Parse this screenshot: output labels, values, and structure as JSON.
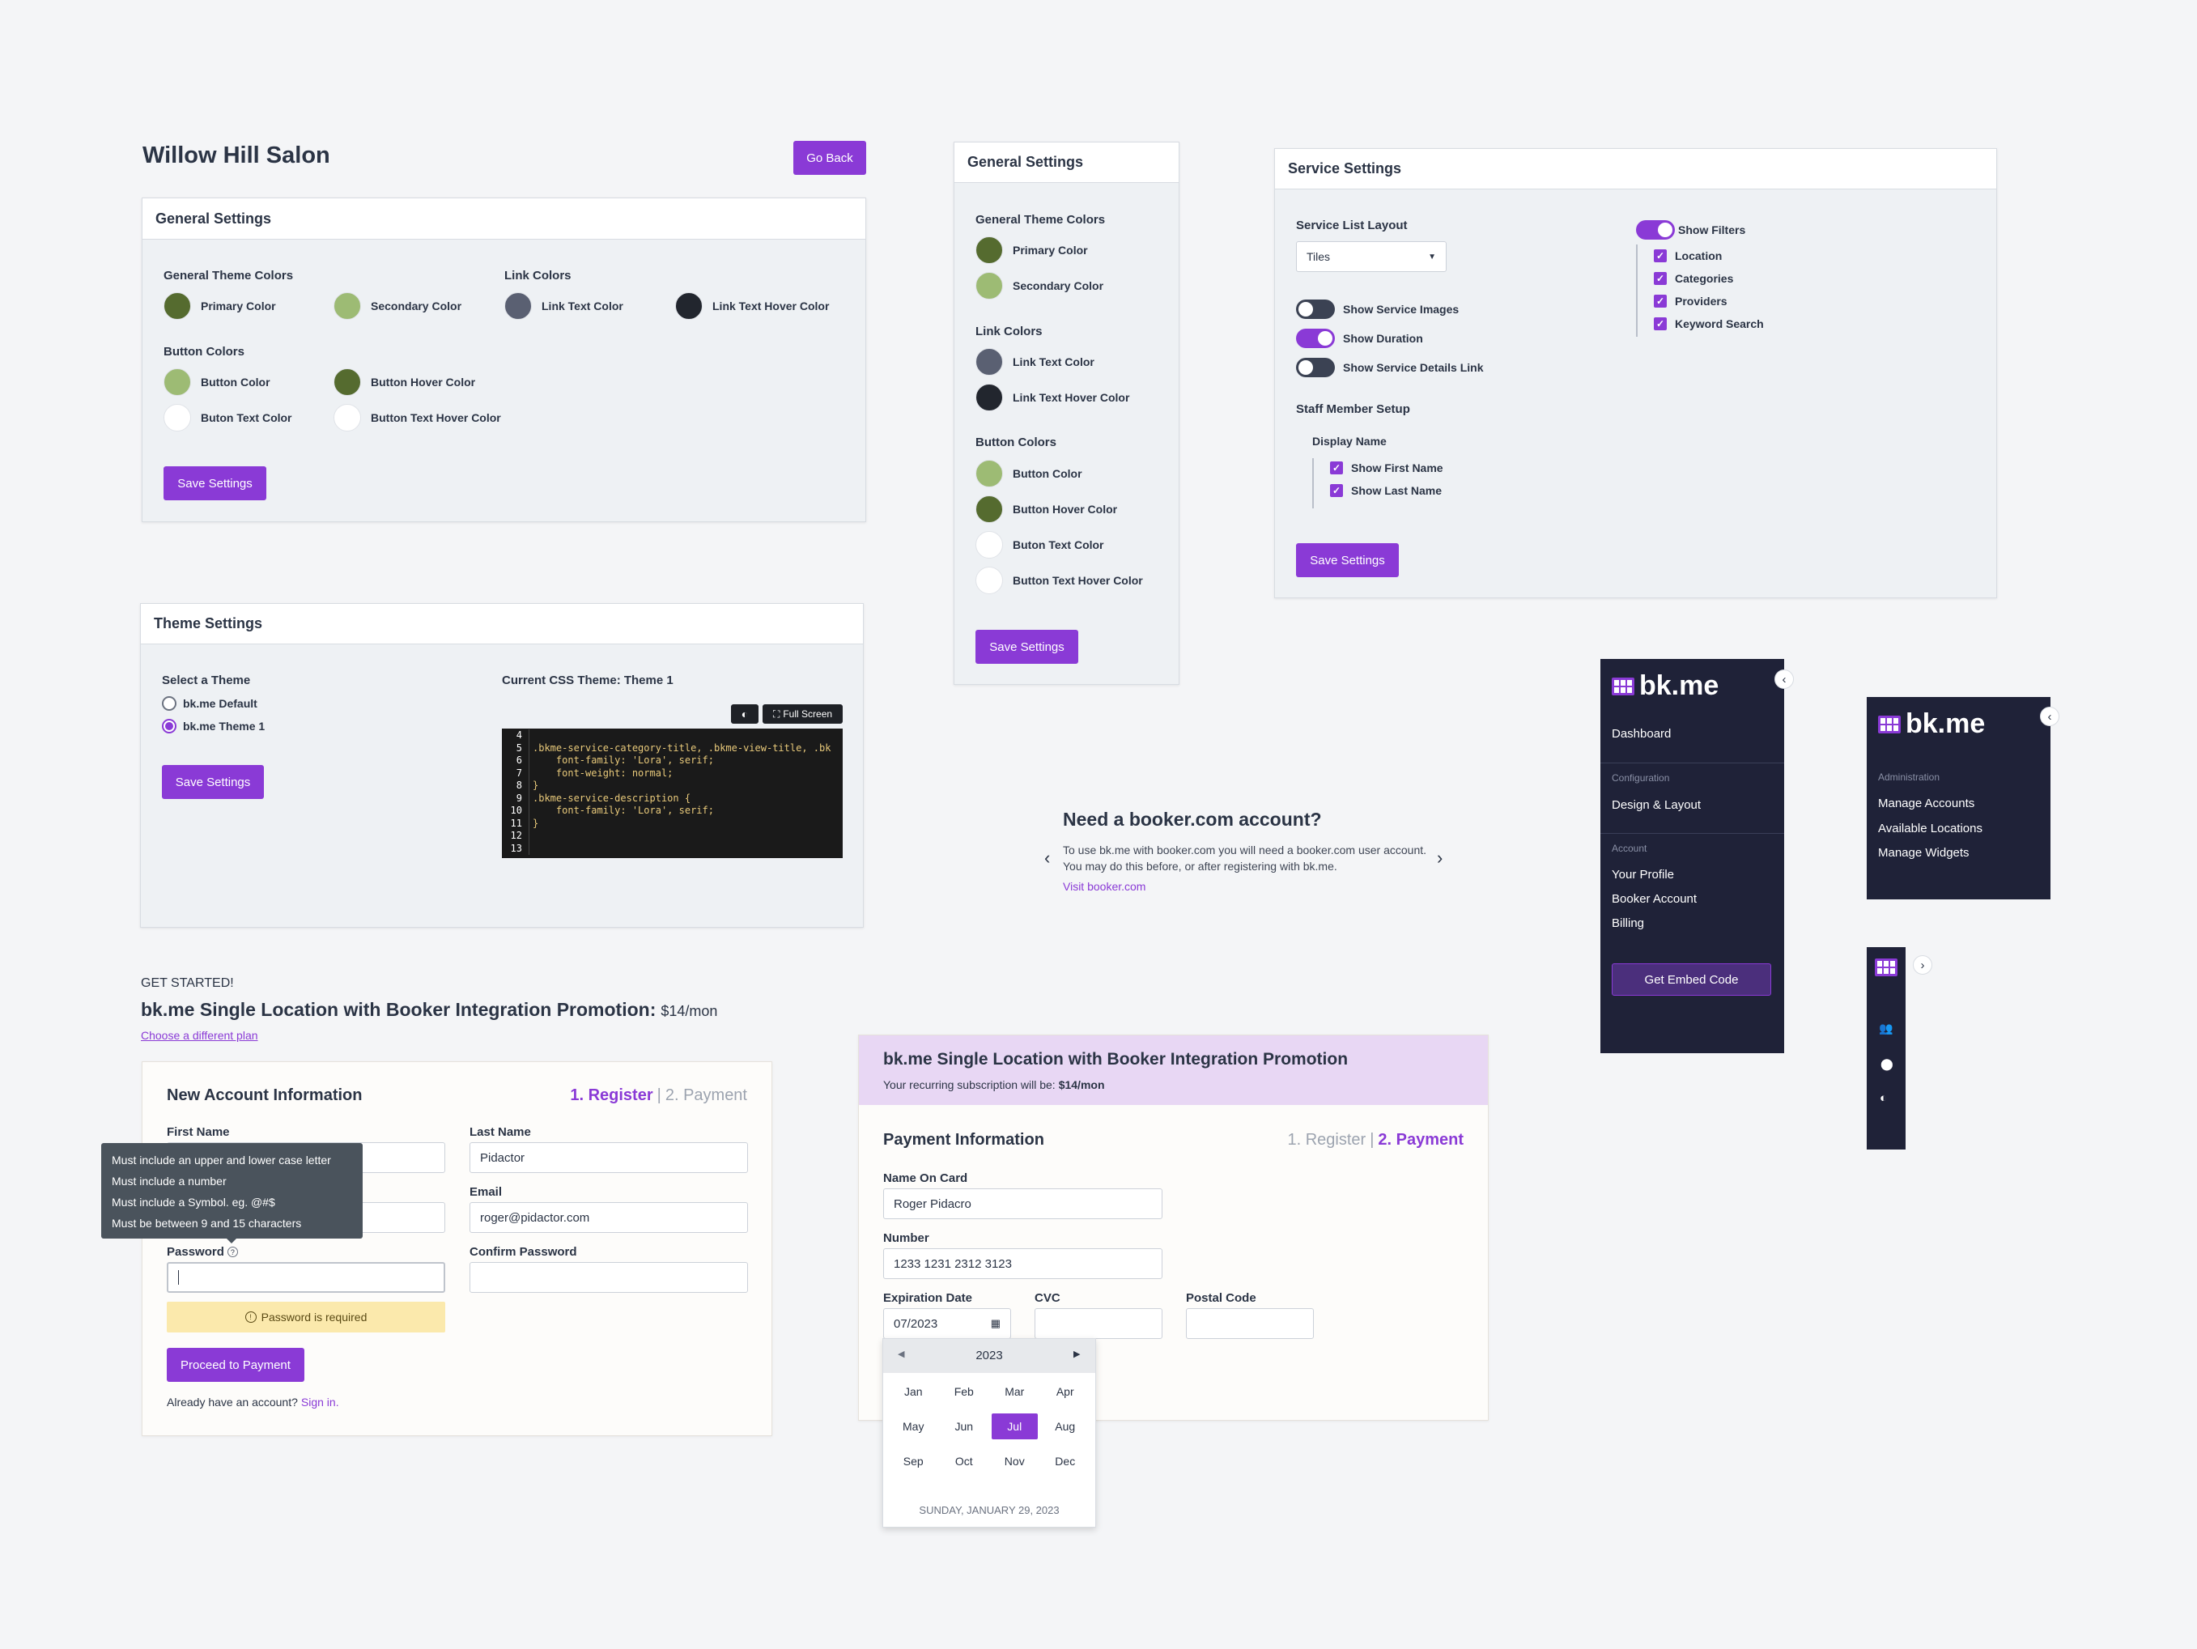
{
  "salon": {
    "title": "Willow Hill Salon",
    "go_back": "Go Back",
    "header": "General Settings",
    "theme_colors_label": "General Theme Colors",
    "link_colors_label": "Link Colors",
    "button_colors_label": "Button Colors",
    "primary": "Primary Color",
    "secondary": "Secondary Color",
    "link_text": "Link Text Color",
    "link_hover": "Link Text Hover Color",
    "button": "Button Color",
    "button_hover": "Button Hover Color",
    "button_text": "Buton Text Color",
    "button_text_hover": "Button Text Hover Color",
    "save": "Save Settings"
  },
  "general_narrow": {
    "header": "General Settings",
    "theme_colors_label": "General Theme Colors",
    "primary": "Primary Color",
    "secondary": "Secondary Color",
    "link_colors_label": "Link Colors",
    "link_text": "Link Text Color",
    "link_hover": "Link Text Hover Color",
    "button_colors_label": "Button Colors",
    "button": "Button Color",
    "button_hover": "Button Hover Color",
    "button_text": "Buton Text Color",
    "button_text_hover": "Button Text Hover Color",
    "save": "Save Settings"
  },
  "colors": {
    "primary": "#556b2f",
    "secondary": "#9dbb74",
    "link_text": "#5a6072",
    "link_hover": "#22262e",
    "button": "#9dbb74",
    "button_hover": "#556b2f",
    "button_text": "#ffffff",
    "button_text_hover": "#ffffff",
    "accent": "#8a3ad6",
    "sidebar_bg": "#1f2238"
  },
  "service": {
    "header": "Service Settings",
    "layout_label": "Service List Layout",
    "layout_value": "Tiles",
    "show_images": "Show Service Images",
    "show_duration": "Show Duration",
    "show_details": "Show Service Details Link",
    "staff_setup": "Staff Member Setup",
    "display_name": "Display Name",
    "first_name": "Show First Name",
    "last_name": "Show Last Name",
    "show_filters": "Show Filters",
    "location": "Location",
    "categories": "Categories",
    "providers": "Providers",
    "keyword": "Keyword Search",
    "save": "Save Settings"
  },
  "theme": {
    "header": "Theme Settings",
    "select_label": "Select a Theme",
    "default": "bk.me Default",
    "theme1": "bk.me Theme 1",
    "save": "Save Settings",
    "current": "Current CSS Theme: Theme 1",
    "fullscreen": "Full Screen",
    "code": [
      {
        "n": "4",
        "t": ""
      },
      {
        "n": "5",
        "t": ".bkme-service-category-title, .bkme-view-title, .bk"
      },
      {
        "n": "6",
        "t": "    font-family: 'Lora', serif;"
      },
      {
        "n": "7",
        "t": "    font-weight: normal;"
      },
      {
        "n": "8",
        "t": "}"
      },
      {
        "n": "9",
        "t": ".bkme-service-description {"
      },
      {
        "n": "10",
        "t": "    font-family: 'Lora', serif;"
      },
      {
        "n": "11",
        "t": "}"
      },
      {
        "n": "12",
        "t": ""
      },
      {
        "n": "13",
        "t": ""
      }
    ]
  },
  "booker": {
    "title": "Need a booker.com account?",
    "body": "To use bk.me with booker.com you will need a booker.com user account. You may do this before, or after registering with bk.me.",
    "link": "Visit booker.com"
  },
  "sidebar1": {
    "logo": "bk.me",
    "dashboard": "Dashboard",
    "config": "Configuration",
    "design": "Design & Layout",
    "account": "Account",
    "profile": "Your Profile",
    "booker": "Booker Account",
    "billing": "Billing",
    "embed": "Get Embed Code"
  },
  "sidebar2": {
    "logo": "bk.me",
    "admin": "Administration",
    "accounts": "Manage Accounts",
    "locations": "Available Locations",
    "widgets": "Manage Widgets"
  },
  "register": {
    "get_started": "GET STARTED!",
    "plan_title": "bk.me Single Location with Booker Integration Promotion:",
    "plan_price": "$14/mon",
    "choose": "Choose a different plan",
    "card_title": "New Account Information",
    "step1": "1. Register",
    "sep": "|",
    "step2": "2. Payment",
    "first_name": "First Name",
    "last_name": "Last Name",
    "last_value": "Pidactor",
    "email_label": "Email",
    "email_value": "roger@pidactor.com",
    "password": "Password",
    "confirm": "Confirm Password",
    "tooltip": [
      "Must include an upper and lower case letter",
      "Must include a number",
      "Must include a Symbol. eg. @#$",
      "Must be between 9 and 15 characters"
    ],
    "warning": "Password is required",
    "proceed": "Proceed to Payment",
    "already": "Already have an account?",
    "signin": "Sign in."
  },
  "payment": {
    "title": "bk.me Single Location with Booker Integration Promotion",
    "recurring": "Your recurring subscription will be:",
    "price": "$14/mon",
    "card_title": "Payment Information",
    "step1": "1. Register",
    "sep": "|",
    "step2": "2. Payment",
    "name_label": "Name On Card",
    "name_value": "Roger Pidacro",
    "number_label": "Number",
    "number_value": "1233 1231 2312 3123",
    "exp_label": "Expiration Date",
    "exp_value": "07/2023",
    "cvc_label": "CVC",
    "postal_label": "Postal Code",
    "year": "2023",
    "months": [
      "Jan",
      "Feb",
      "Mar",
      "Apr",
      "May",
      "Jun",
      "Jul",
      "Aug",
      "Sep",
      "Oct",
      "Nov",
      "Dec"
    ],
    "selected": "Jul",
    "today": "SUNDAY, JANUARY 29, 2023"
  }
}
